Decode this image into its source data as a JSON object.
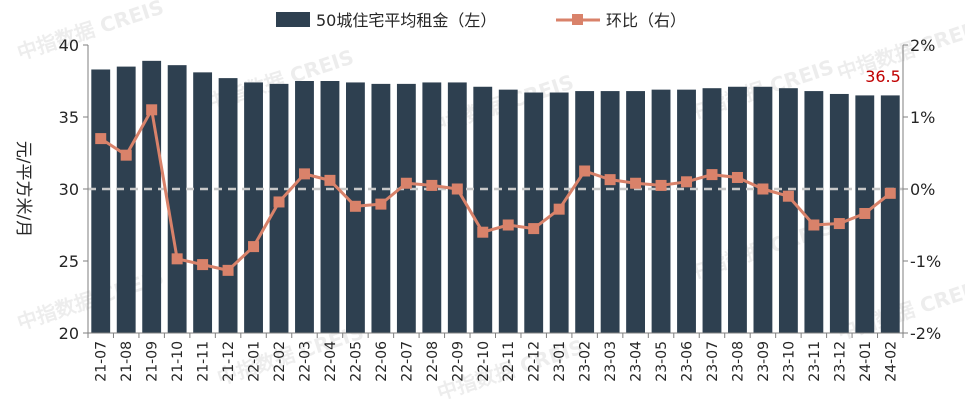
{
  "chart_data": {
    "type": "bar+line",
    "categories": [
      "21-07",
      "21-08",
      "21-09",
      "21-10",
      "21-11",
      "21-12",
      "22-01",
      "22-02",
      "22-03",
      "22-04",
      "22-05",
      "22-06",
      "22-07",
      "22-08",
      "22-09",
      "22-10",
      "22-11",
      "22-12",
      "23-01",
      "23-02",
      "23-03",
      "23-04",
      "23-05",
      "23-06",
      "23-07",
      "23-08",
      "23-09",
      "23-10",
      "23-11",
      "23-12",
      "24-01",
      "24-02"
    ],
    "series": [
      {
        "name": "50城住宅平均租金（左）",
        "type": "bar",
        "axis": "left",
        "color": "#2e4050",
        "values": [
          38.3,
          38.5,
          38.9,
          38.6,
          38.1,
          37.7,
          37.4,
          37.3,
          37.5,
          37.5,
          37.4,
          37.3,
          37.3,
          37.4,
          37.4,
          37.1,
          36.9,
          36.7,
          36.7,
          36.8,
          36.8,
          36.8,
          36.9,
          36.9,
          37.0,
          37.1,
          37.1,
          37.0,
          36.8,
          36.6,
          36.5,
          36.5
        ]
      },
      {
        "name": "环比（右）",
        "type": "line",
        "axis": "right",
        "color": "#d9826a",
        "values": [
          0.7,
          0.47,
          1.1,
          -0.97,
          -1.05,
          -1.13,
          -0.8,
          -0.18,
          0.21,
          0.12,
          -0.24,
          -0.21,
          0.08,
          0.05,
          0.0,
          -0.6,
          -0.5,
          -0.55,
          -0.28,
          0.25,
          0.13,
          0.08,
          0.05,
          0.1,
          0.2,
          0.16,
          0.0,
          -0.1,
          -0.5,
          -0.48,
          -0.34,
          -0.06
        ]
      }
    ],
    "y_left": {
      "label": "元/平方米/月",
      "ylim": [
        20,
        40
      ],
      "ticks": [
        "20",
        "25",
        "30",
        "35",
        "40"
      ]
    },
    "y_right": {
      "ylim": [
        -2,
        2
      ],
      "ticks": [
        "-2%",
        "-1%",
        "0%",
        "1%",
        "2%"
      ]
    },
    "reference_line": {
      "axis": "right",
      "value": 0,
      "style": "dashed",
      "color": "#c8c8c8"
    },
    "annotation": {
      "text": "36.5",
      "color": "#c00000"
    },
    "legend": {
      "position": "top"
    },
    "watermark": "中指数据 CREIS",
    "grid": false
  }
}
